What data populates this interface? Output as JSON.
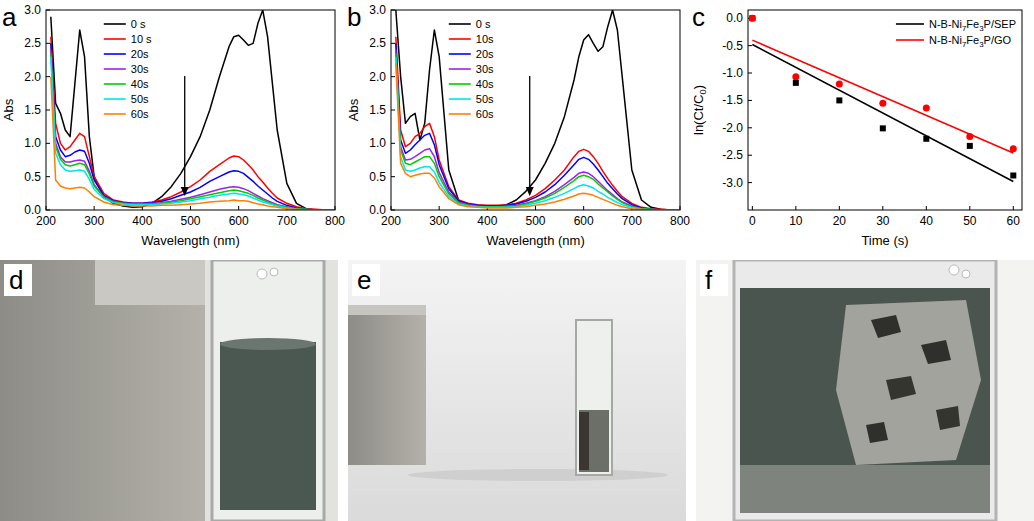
{
  "chart_data": [
    {
      "type": "line",
      "panel_label": "a",
      "x_label": "Wavelength (nm)",
      "y_label": "Abs",
      "x": [
        210,
        220,
        230,
        240,
        250,
        260,
        270,
        280,
        290,
        300,
        320,
        340,
        360,
        380,
        400,
        420,
        440,
        460,
        480,
        500,
        520,
        540,
        560,
        580,
        590,
        600,
        610,
        620,
        630,
        640,
        650,
        660,
        670,
        680,
        700,
        720,
        740,
        760,
        780,
        800
      ],
      "xlim": [
        200,
        800
      ],
      "ylim": [
        0,
        3
      ],
      "xticks": [
        200,
        300,
        400,
        500,
        600,
        700,
        800
      ],
      "yticks": [
        {
          "value": 0,
          "label": "0.0"
        },
        {
          "value": 0.5,
          "label": "0.5"
        },
        {
          "value": 1,
          "label": "1.0"
        },
        {
          "value": 1.5,
          "label": "1.5"
        },
        {
          "value": 2,
          "label": "2.0"
        },
        {
          "value": 2.5,
          "label": "2.5"
        },
        {
          "value": 3,
          "label": "3.0"
        }
      ],
      "legend": "upper center",
      "series": [
        {
          "name": "0 s",
          "color": "#000000",
          "values": [
            2.9,
            1.6,
            1.45,
            1.2,
            1.1,
            1.9,
            2.7,
            2.3,
            1.1,
            0.5,
            0.2,
            0.1,
            0.06,
            0.04,
            0.05,
            0.1,
            0.2,
            0.35,
            0.55,
            0.8,
            1.1,
            1.5,
            2.0,
            2.45,
            2.6,
            2.62,
            2.55,
            2.47,
            2.5,
            2.8,
            3.0,
            2.6,
            1.9,
            1.2,
            0.4,
            0.1,
            0.02,
            0,
            0,
            0
          ]
        },
        {
          "name": "10 s",
          "color": "#ff0000",
          "values": [
            2.6,
            1.3,
            1.0,
            0.9,
            0.95,
            1.05,
            1.15,
            1.1,
            0.8,
            0.5,
            0.25,
            0.15,
            0.12,
            0.1,
            0.1,
            0.12,
            0.15,
            0.2,
            0.27,
            0.35,
            0.45,
            0.58,
            0.68,
            0.78,
            0.81,
            0.8,
            0.75,
            0.68,
            0.6,
            0.5,
            0.42,
            0.33,
            0.25,
            0.18,
            0.1,
            0.05,
            0.02,
            0.01,
            0,
            0
          ]
        },
        {
          "name": "20s",
          "color": "#0000ff",
          "values": [
            2.5,
            1.1,
            0.9,
            0.8,
            0.82,
            0.87,
            0.9,
            0.88,
            0.7,
            0.45,
            0.22,
            0.14,
            0.11,
            0.1,
            0.1,
            0.11,
            0.13,
            0.17,
            0.22,
            0.27,
            0.34,
            0.43,
            0.5,
            0.57,
            0.59,
            0.58,
            0.55,
            0.49,
            0.43,
            0.36,
            0.3,
            0.24,
            0.18,
            0.13,
            0.07,
            0.03,
            0.01,
            0,
            0,
            0
          ]
        },
        {
          "name": "30s",
          "color": "#a020f0",
          "values": [
            2.4,
            1.0,
            0.8,
            0.72,
            0.72,
            0.74,
            0.75,
            0.73,
            0.58,
            0.38,
            0.2,
            0.13,
            0.1,
            0.09,
            0.09,
            0.1,
            0.11,
            0.13,
            0.16,
            0.19,
            0.23,
            0.27,
            0.31,
            0.34,
            0.35,
            0.34,
            0.32,
            0.29,
            0.25,
            0.21,
            0.17,
            0.14,
            0.11,
            0.08,
            0.05,
            0.02,
            0.01,
            0,
            0,
            0
          ]
        },
        {
          "name": "40s",
          "color": "#00cc00",
          "values": [
            2.35,
            0.95,
            0.76,
            0.68,
            0.66,
            0.68,
            0.7,
            0.68,
            0.54,
            0.36,
            0.19,
            0.12,
            0.1,
            0.09,
            0.09,
            0.09,
            0.1,
            0.12,
            0.14,
            0.17,
            0.2,
            0.23,
            0.26,
            0.29,
            0.3,
            0.29,
            0.27,
            0.25,
            0.22,
            0.18,
            0.15,
            0.12,
            0.09,
            0.07,
            0.04,
            0.02,
            0.01,
            0,
            0,
            0
          ]
        },
        {
          "name": "50s",
          "color": "#00e5ee",
          "values": [
            2.3,
            0.85,
            0.68,
            0.6,
            0.58,
            0.59,
            0.6,
            0.58,
            0.46,
            0.31,
            0.17,
            0.11,
            0.09,
            0.08,
            0.08,
            0.08,
            0.09,
            0.1,
            0.12,
            0.14,
            0.17,
            0.19,
            0.22,
            0.24,
            0.25,
            0.24,
            0.23,
            0.21,
            0.18,
            0.15,
            0.12,
            0.1,
            0.08,
            0.06,
            0.03,
            0.01,
            0,
            0,
            0,
            0
          ]
        },
        {
          "name": "60s",
          "color": "#ff8000",
          "values": [
            2.0,
            0.45,
            0.36,
            0.33,
            0.32,
            0.33,
            0.34,
            0.33,
            0.27,
            0.2,
            0.12,
            0.08,
            0.07,
            0.06,
            0.06,
            0.06,
            0.07,
            0.07,
            0.08,
            0.09,
            0.1,
            0.12,
            0.13,
            0.14,
            0.15,
            0.14,
            0.14,
            0.13,
            0.11,
            0.09,
            0.08,
            0.06,
            0.05,
            0.04,
            0.02,
            0.01,
            0,
            0,
            0,
            0
          ]
        }
      ]
    },
    {
      "type": "line",
      "panel_label": "b",
      "x_label": "Wavelength (nm)",
      "y_label": "Abs",
      "x": [
        210,
        220,
        230,
        240,
        250,
        260,
        270,
        280,
        290,
        300,
        320,
        340,
        360,
        380,
        400,
        420,
        440,
        460,
        480,
        500,
        520,
        540,
        560,
        580,
        590,
        600,
        610,
        620,
        630,
        640,
        650,
        660,
        670,
        680,
        700,
        720,
        740,
        760,
        780,
        800
      ],
      "xlim": [
        200,
        800
      ],
      "ylim": [
        0,
        3
      ],
      "xticks": [
        200,
        300,
        400,
        500,
        600,
        700,
        800
      ],
      "yticks": [
        {
          "value": 0,
          "label": "0.0"
        },
        {
          "value": 0.5,
          "label": "0.5"
        },
        {
          "value": 1,
          "label": "1.0"
        },
        {
          "value": 1.5,
          "label": "1.5"
        },
        {
          "value": 2,
          "label": "2.0"
        },
        {
          "value": 2.5,
          "label": "2.5"
        },
        {
          "value": 3,
          "label": "3.0"
        }
      ],
      "legend": "upper center",
      "series": [
        {
          "name": "0 s",
          "color": "#000000",
          "values": [
            3.0,
            2.0,
            1.3,
            1.4,
            1.45,
            1.05,
            1.3,
            2.1,
            2.7,
            2.3,
            0.6,
            0.15,
            0.08,
            0.05,
            0.04,
            0.05,
            0.08,
            0.15,
            0.28,
            0.45,
            0.7,
            1.0,
            1.4,
            1.95,
            2.3,
            2.55,
            2.63,
            2.5,
            2.38,
            2.45,
            2.75,
            3.0,
            2.7,
            2.0,
            0.6,
            0.15,
            0.04,
            0.01,
            0,
            0
          ]
        },
        {
          "name": "10s",
          "color": "#ff0000",
          "values": [
            2.6,
            1.2,
            0.95,
            1.0,
            1.1,
            1.15,
            1.25,
            1.3,
            1.1,
            0.75,
            0.35,
            0.15,
            0.1,
            0.08,
            0.07,
            0.07,
            0.08,
            0.1,
            0.15,
            0.22,
            0.32,
            0.45,
            0.6,
            0.8,
            0.88,
            0.91,
            0.88,
            0.8,
            0.7,
            0.58,
            0.47,
            0.37,
            0.28,
            0.2,
            0.1,
            0.04,
            0.02,
            0.01,
            0,
            0
          ]
        },
        {
          "name": "20s",
          "color": "#0000ff",
          "values": [
            2.5,
            1.05,
            0.85,
            0.9,
            0.98,
            1.05,
            1.12,
            1.15,
            0.98,
            0.68,
            0.32,
            0.14,
            0.09,
            0.07,
            0.06,
            0.06,
            0.07,
            0.09,
            0.13,
            0.19,
            0.27,
            0.38,
            0.52,
            0.68,
            0.76,
            0.79,
            0.76,
            0.69,
            0.6,
            0.5,
            0.4,
            0.32,
            0.24,
            0.17,
            0.08,
            0.03,
            0.01,
            0,
            0,
            0
          ]
        },
        {
          "name": "30s",
          "color": "#a020f0",
          "values": [
            2.4,
            0.95,
            0.75,
            0.76,
            0.8,
            0.85,
            0.9,
            0.92,
            0.8,
            0.56,
            0.27,
            0.12,
            0.08,
            0.06,
            0.05,
            0.05,
            0.06,
            0.07,
            0.1,
            0.14,
            0.2,
            0.28,
            0.38,
            0.49,
            0.55,
            0.57,
            0.55,
            0.5,
            0.43,
            0.36,
            0.29,
            0.23,
            0.17,
            0.12,
            0.06,
            0.02,
            0.01,
            0,
            0,
            0
          ]
        },
        {
          "name": "40s",
          "color": "#00cc00",
          "values": [
            2.35,
            0.9,
            0.7,
            0.68,
            0.72,
            0.76,
            0.8,
            0.8,
            0.7,
            0.5,
            0.24,
            0.11,
            0.07,
            0.05,
            0.05,
            0.05,
            0.05,
            0.06,
            0.09,
            0.13,
            0.18,
            0.25,
            0.34,
            0.44,
            0.5,
            0.52,
            0.5,
            0.46,
            0.39,
            0.33,
            0.27,
            0.21,
            0.16,
            0.11,
            0.05,
            0.02,
            0.01,
            0,
            0,
            0
          ]
        },
        {
          "name": "50s",
          "color": "#00e5ee",
          "values": [
            2.3,
            0.8,
            0.6,
            0.58,
            0.6,
            0.63,
            0.65,
            0.65,
            0.57,
            0.41,
            0.2,
            0.09,
            0.06,
            0.05,
            0.04,
            0.04,
            0.04,
            0.05,
            0.07,
            0.1,
            0.14,
            0.19,
            0.25,
            0.32,
            0.36,
            0.38,
            0.36,
            0.33,
            0.28,
            0.24,
            0.19,
            0.15,
            0.11,
            0.08,
            0.04,
            0.01,
            0,
            0,
            0,
            0
          ]
        },
        {
          "name": "60s",
          "color": "#ff8000",
          "values": [
            2.2,
            0.7,
            0.55,
            0.5,
            0.52,
            0.54,
            0.55,
            0.55,
            0.48,
            0.35,
            0.17,
            0.08,
            0.05,
            0.04,
            0.03,
            0.03,
            0.03,
            0.04,
            0.05,
            0.07,
            0.09,
            0.12,
            0.16,
            0.21,
            0.24,
            0.25,
            0.24,
            0.22,
            0.19,
            0.16,
            0.13,
            0.1,
            0.07,
            0.05,
            0.02,
            0.01,
            0,
            0,
            0,
            0
          ]
        }
      ]
    },
    {
      "type": "scatter",
      "panel_label": "c",
      "x_label": "Time (s)",
      "y_label": "ln(Ct/C0)",
      "x": [
        0,
        10,
        20,
        30,
        40,
        50,
        60
      ],
      "xlim": [
        -1,
        62
      ],
      "ylim": [
        -3.5,
        0.15
      ],
      "xticks": [
        0,
        10,
        20,
        30,
        40,
        50,
        60
      ],
      "yticks": [
        {
          "value": 0,
          "label": "0.0"
        },
        {
          "value": -0.5,
          "label": "-0.5"
        },
        {
          "value": -1,
          "label": "-1.0"
        },
        {
          "value": -1.5,
          "label": "-1.5"
        },
        {
          "value": -2,
          "label": "-2.0"
        },
        {
          "value": -2.5,
          "label": "-2.5"
        },
        {
          "value": -3,
          "label": "-3.0"
        }
      ],
      "legend": "upper right",
      "series": [
        {
          "name": "N-B-Ni7Fe3P/SEP",
          "color": "#000000",
          "marker": "square",
          "line_style": "solid",
          "values": [
            0,
            -1.18,
            -1.5,
            -2.01,
            -2.2,
            -2.33,
            -2.87
          ],
          "fit_x": [
            0,
            60
          ],
          "fit_values": [
            -0.48,
            -2.98
          ]
        },
        {
          "name": "N-B-Ni7Fe3P/GO",
          "color": "#ff0000",
          "marker": "circle",
          "line_style": "solid",
          "values": [
            0,
            -1.07,
            -1.2,
            -1.55,
            -1.64,
            -2.16,
            -2.38
          ],
          "fit_x": [
            0,
            60
          ],
          "fit_values": [
            -0.4,
            -2.46
          ]
        }
      ]
    }
  ],
  "photos": [
    {
      "label": "d"
    },
    {
      "label": "e"
    },
    {
      "label": "f"
    }
  ]
}
